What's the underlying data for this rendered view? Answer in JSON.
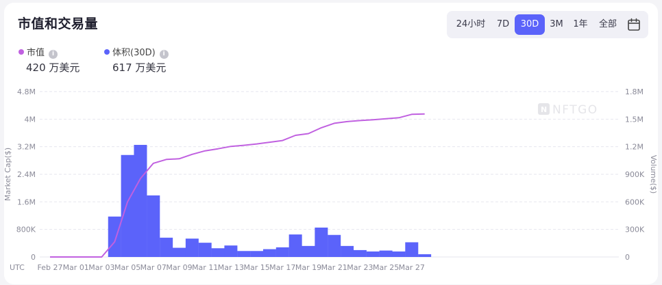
{
  "header": {
    "title": "市值和交易量"
  },
  "range_buttons": [
    "24小时",
    "7D",
    "30D",
    "3M",
    "1年",
    "全部"
  ],
  "active_range": "30D",
  "legend": [
    {
      "label": "市值",
      "value": "420 万美元",
      "color": "#c060e0"
    },
    {
      "label": "体积(30D)",
      "value": "617 万美元",
      "color": "#5b63fa"
    }
  ],
  "watermark": "NFTGO",
  "chart_data": {
    "type": "bar+line",
    "timezone_label": "UTC",
    "x_tick_labels": [
      "Feb 27",
      "Mar 01",
      "Mar 03",
      "Mar 05",
      "Mar 07",
      "Mar 09",
      "Mar 11",
      "Mar 13",
      "Mar 15",
      "Mar 17",
      "Mar 19",
      "Mar 21",
      "Mar 23",
      "Mar 25",
      "Mar 27"
    ],
    "y_left": {
      "label": "Market Cap($)",
      "ticks": [
        "0",
        "800K",
        "1.6M",
        "2.4M",
        "3.2M",
        "4M",
        "4.8M"
      ],
      "min": 0,
      "max": 4800000
    },
    "y_right": {
      "label": "Volume($)",
      "ticks": [
        "0",
        "300K",
        "600K",
        "900K",
        "1.2M",
        "1.5M",
        "1.8M"
      ],
      "min": 0,
      "max": 1800000
    },
    "series": [
      {
        "name": "体积(30D)",
        "type": "bar",
        "axis": "right",
        "color": "#5b63fa",
        "dates": [
          "Mar 04",
          "Mar 05",
          "Mar 06",
          "Mar 07",
          "Mar 08",
          "Mar 09",
          "Mar 10",
          "Mar 11",
          "Mar 12",
          "Mar 13",
          "Mar 14",
          "Mar 15",
          "Mar 16",
          "Mar 17",
          "Mar 18",
          "Mar 19",
          "Mar 20",
          "Mar 21",
          "Mar 22",
          "Mar 23",
          "Mar 24",
          "Mar 25",
          "Mar 26",
          "Mar 27",
          "Mar 28"
        ],
        "values": [
          440000,
          1110000,
          1220000,
          670000,
          210000,
          100000,
          200000,
          155000,
          95000,
          125000,
          65000,
          65000,
          85000,
          105000,
          245000,
          120000,
          320000,
          240000,
          120000,
          75000,
          60000,
          70000,
          60000,
          160000,
          30000
        ]
      },
      {
        "name": "市值",
        "type": "line",
        "axis": "left",
        "color": "#c060e0",
        "dates": [
          "Feb 27",
          "Feb 28",
          "Mar 01",
          "Mar 02",
          "Mar 03",
          "Mar 04",
          "Mar 05",
          "Mar 06",
          "Mar 07",
          "Mar 08",
          "Mar 09",
          "Mar 10",
          "Mar 11",
          "Mar 12",
          "Mar 13",
          "Mar 14",
          "Mar 15",
          "Mar 16",
          "Mar 17",
          "Mar 18",
          "Mar 19",
          "Mar 20",
          "Mar 21",
          "Mar 22",
          "Mar 23",
          "Mar 24",
          "Mar 25",
          "Mar 26",
          "Mar 27",
          "Mar 28"
        ],
        "values": [
          0,
          0,
          0,
          0,
          0,
          440000,
          1600000,
          2280000,
          2720000,
          2830000,
          2850000,
          2980000,
          3080000,
          3140000,
          3210000,
          3240000,
          3280000,
          3330000,
          3380000,
          3530000,
          3580000,
          3750000,
          3880000,
          3930000,
          3960000,
          3980000,
          4010000,
          4040000,
          4140000,
          4150000
        ]
      }
    ]
  }
}
